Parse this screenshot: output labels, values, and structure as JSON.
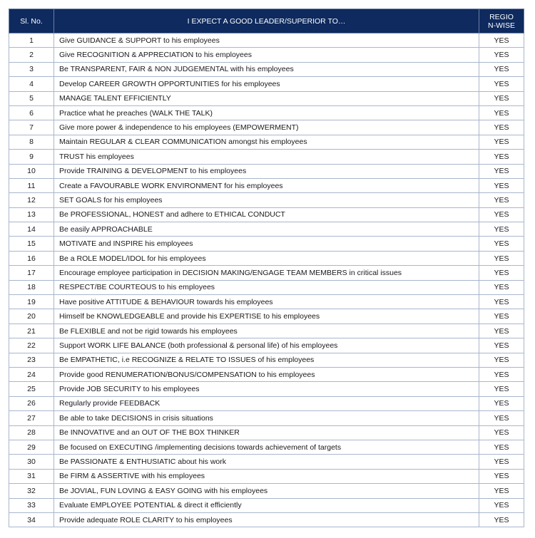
{
  "table": {
    "headers": [
      "Sl. No.",
      "I EXPECT A GOOD LEADER/SUPERIOR TO…",
      "REGION-WISE"
    ],
    "header_color": "#0e2a5e",
    "rows": [
      [
        "1",
        "Give GUIDANCE & SUPPORT to his employees",
        "YES"
      ],
      [
        "2",
        "Give RECOGNITION & APPRECIATION to his employees",
        "YES"
      ],
      [
        "3",
        "Be TRANSPARENT, FAIR & NON JUDGEMENTAL with his employees",
        "YES"
      ],
      [
        "4",
        "Develop CAREER GROWTH OPPORTUNITIES for his employees",
        "YES"
      ],
      [
        "5",
        "MANAGE TALENT EFFICIENTLY",
        "YES"
      ],
      [
        "6",
        "Practice what he preaches (WALK THE TALK)",
        "YES"
      ],
      [
        "7",
        "Give more power & independence to his employees (EMPOWERMENT)",
        "YES"
      ],
      [
        "8",
        "Maintain REGULAR & CLEAR COMMUNICATION amongst his employees",
        "YES"
      ],
      [
        "9",
        "TRUST his employees",
        "YES"
      ],
      [
        "10",
        "Provide TRAINING & DEVELOPMENT to his employees",
        "YES"
      ],
      [
        "11",
        "Create a FAVOURABLE WORK ENVIRONMENT for his employees",
        "YES"
      ],
      [
        "12",
        "SET GOALS for his employees",
        "YES"
      ],
      [
        "13",
        "Be PROFESSIONAL, HONEST and adhere to ETHICAL CONDUCT",
        "YES"
      ],
      [
        "14",
        "Be easily APPROACHABLE",
        "YES"
      ],
      [
        "15",
        "MOTIVATE and INSPIRE his employees",
        "YES"
      ],
      [
        "16",
        "Be a ROLE MODEL/IDOL for his employees",
        "YES"
      ],
      [
        "17",
        "Encourage employee participation in DECISION MAKING/ENGAGE TEAM MEMBERS in critical issues",
        "YES"
      ],
      [
        "18",
        "RESPECT/BE COURTEOUS to his employees",
        "YES"
      ],
      [
        "19",
        "Have positive ATTITUDE & BEHAVIOUR towards his employees",
        "YES"
      ],
      [
        "20",
        "Himself be KNOWLEDGEABLE and provide his EXPERTISE to his employees",
        "YES"
      ],
      [
        "21",
        "Be FLEXIBLE and not be rigid towards his employees",
        "YES"
      ],
      [
        "22",
        "Support WORK LIFE BALANCE (both professional & personal life) of his employees",
        "YES"
      ],
      [
        "23",
        "Be EMPATHETIC, i.e RECOGNIZE & RELATE TO ISSUES of his employees",
        "YES"
      ],
      [
        "24",
        "Provide good RENUMERATION/BONUS/COMPENSATION to his employees",
        "YES"
      ],
      [
        "25",
        "Provide JOB SECURITY to his employees",
        "YES"
      ],
      [
        "26",
        "Regularly provide FEEDBACK",
        "YES"
      ],
      [
        "27",
        "Be able to take DECISIONS in crisis situations",
        "YES"
      ],
      [
        "28",
        "Be INNOVATIVE and an OUT OF THE BOX THINKER",
        "YES"
      ],
      [
        "29",
        "Be focused on EXECUTING /implementing decisions towards achievement of targets",
        "YES"
      ],
      [
        "30",
        "Be PASSIONATE & ENTHUSIATIC about his work",
        "YES"
      ],
      [
        "31",
        "Be FIRM & ASSERTIVE with his employees",
        "YES"
      ],
      [
        "32",
        "Be JOVIAL, FUN LOVING & EASY GOING with his employees",
        "YES"
      ],
      [
        "33",
        "Evaluate EMPLOYEE POTENTIAL & direct it efficiently",
        "YES"
      ],
      [
        "34",
        "Provide adequate ROLE CLARITY to his employees",
        "YES"
      ]
    ]
  }
}
